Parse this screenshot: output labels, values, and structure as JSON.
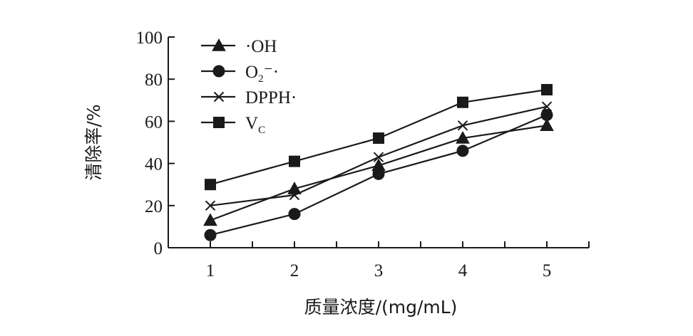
{
  "chart_data": {
    "type": "line",
    "xlabel": "质量浓度/(mg/mL)",
    "ylabel": "清除率/%",
    "x": [
      1,
      2,
      3,
      4,
      5
    ],
    "xlim": [
      0.5,
      5.5
    ],
    "ylim": [
      0,
      100
    ],
    "yticks": [
      0,
      20,
      40,
      60,
      80,
      100
    ],
    "xticks": [
      1,
      2,
      3,
      4,
      5
    ],
    "grid": false,
    "legend_position": "top-left",
    "series": [
      {
        "name": "·OH",
        "name_main": "·OH",
        "name_sub": "",
        "name_tail": "",
        "marker": "triangle",
        "values": [
          13,
          28,
          39,
          52,
          58
        ]
      },
      {
        "name": "O2⁻·",
        "name_main": "O",
        "name_sub": "2",
        "name_tail": "⁻·",
        "marker": "circle",
        "values": [
          6,
          16,
          35,
          46,
          63
        ]
      },
      {
        "name": "DPPH·",
        "name_main": "DPPH·",
        "name_sub": "",
        "name_tail": "",
        "marker": "x",
        "values": [
          20,
          25,
          43,
          58,
          67
        ]
      },
      {
        "name": "VC",
        "name_main": "V",
        "name_sub": "C",
        "name_tail": "",
        "marker": "square",
        "values": [
          30,
          41,
          52,
          69,
          75
        ]
      }
    ]
  }
}
